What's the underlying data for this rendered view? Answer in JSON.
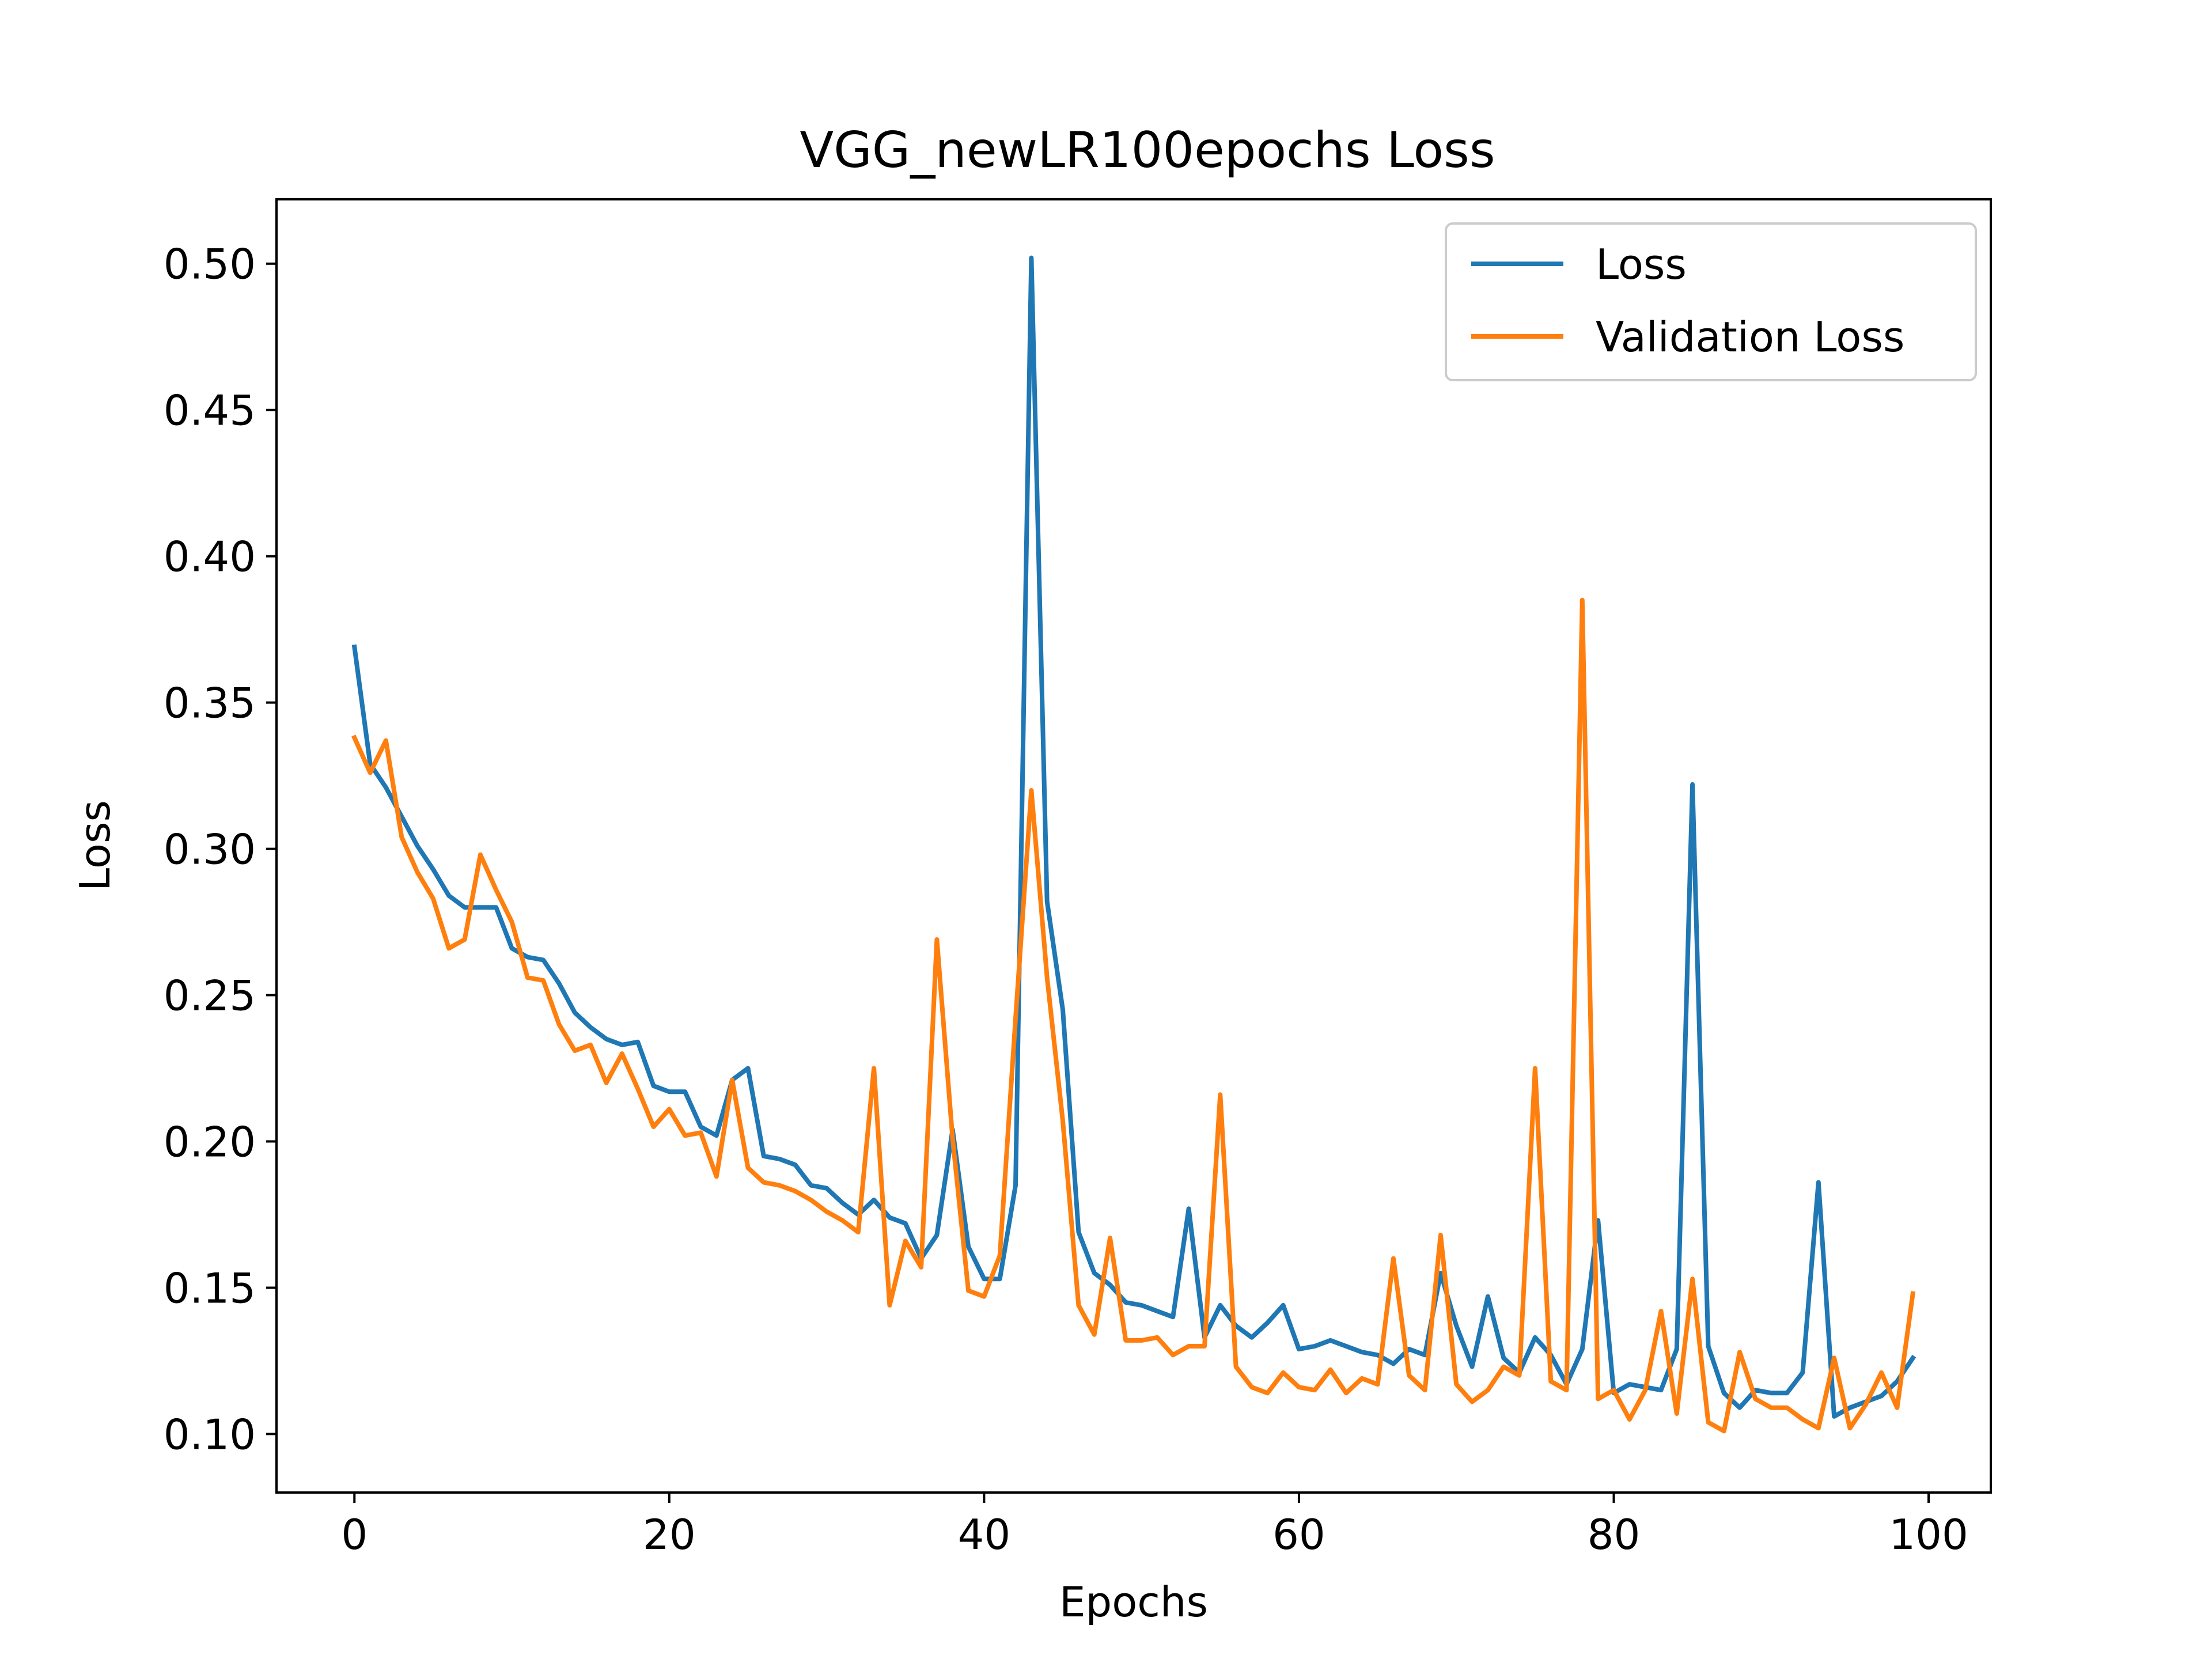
{
  "chart_data": {
    "type": "line",
    "title": "VGG_newLR100epochs Loss",
    "xlabel": "Epochs",
    "ylabel": "Loss",
    "xlim": [
      -4.95,
      103.95
    ],
    "ylim": [
      0.08,
      0.522
    ],
    "xticks": [
      0,
      20,
      40,
      60,
      80,
      100
    ],
    "xtick_labels": [
      "0",
      "20",
      "40",
      "60",
      "80",
      "100"
    ],
    "yticks": [
      0.1,
      0.15,
      0.2,
      0.25,
      0.3,
      0.35,
      0.4,
      0.45,
      0.5
    ],
    "ytick_labels": [
      "0.10",
      "0.15",
      "0.20",
      "0.25",
      "0.30",
      "0.35",
      "0.40",
      "0.45",
      "0.50"
    ],
    "grid": false,
    "legend": "upper right",
    "series": [
      {
        "name": "Loss",
        "color": "#1f77b4",
        "x": [
          0,
          1,
          2,
          3,
          4,
          5,
          6,
          7,
          8,
          9,
          10,
          11,
          12,
          13,
          14,
          15,
          16,
          17,
          18,
          19,
          20,
          21,
          22,
          23,
          24,
          25,
          26,
          27,
          28,
          29,
          30,
          31,
          32,
          33,
          34,
          35,
          36,
          37,
          38,
          39,
          40,
          41,
          42,
          43,
          44,
          45,
          46,
          47,
          48,
          49,
          50,
          51,
          52,
          53,
          54,
          55,
          56,
          57,
          58,
          59,
          60,
          61,
          62,
          63,
          64,
          65,
          66,
          67,
          68,
          69,
          70,
          71,
          72,
          73,
          74,
          75,
          76,
          77,
          78,
          79,
          80,
          81,
          82,
          83,
          84,
          85,
          86,
          87,
          88,
          89,
          90,
          91,
          92,
          93,
          94,
          95,
          96,
          97,
          98,
          99
        ],
        "values": [
          0.369,
          0.329,
          0.321,
          0.311,
          0.301,
          0.293,
          0.284,
          0.28,
          0.28,
          0.28,
          0.266,
          0.263,
          0.262,
          0.254,
          0.244,
          0.239,
          0.235,
          0.233,
          0.234,
          0.219,
          0.217,
          0.217,
          0.205,
          0.202,
          0.221,
          0.225,
          0.195,
          0.194,
          0.192,
          0.185,
          0.184,
          0.179,
          0.175,
          0.18,
          0.174,
          0.172,
          0.16,
          0.168,
          0.204,
          0.164,
          0.153,
          0.153,
          0.185,
          0.502,
          0.282,
          0.245,
          0.169,
          0.155,
          0.151,
          0.145,
          0.144,
          0.142,
          0.14,
          0.177,
          0.133,
          0.144,
          0.137,
          0.133,
          0.138,
          0.144,
          0.129,
          0.13,
          0.132,
          0.13,
          0.128,
          0.127,
          0.124,
          0.129,
          0.127,
          0.155,
          0.137,
          0.123,
          0.147,
          0.126,
          0.121,
          0.133,
          0.127,
          0.117,
          0.129,
          0.173,
          0.114,
          0.117,
          0.116,
          0.115,
          0.129,
          0.322,
          0.13,
          0.114,
          0.109,
          0.115,
          0.114,
          0.114,
          0.121,
          0.186,
          0.106,
          0.109,
          0.111,
          0.113,
          0.118,
          0.126
        ]
      },
      {
        "name": "Validation Loss",
        "color": "#ff7f0e",
        "x": [
          0,
          1,
          2,
          3,
          4,
          5,
          6,
          7,
          8,
          9,
          10,
          11,
          12,
          13,
          14,
          15,
          16,
          17,
          18,
          19,
          20,
          21,
          22,
          23,
          24,
          25,
          26,
          27,
          28,
          29,
          30,
          31,
          32,
          33,
          34,
          35,
          36,
          37,
          38,
          39,
          40,
          41,
          42,
          43,
          44,
          45,
          46,
          47,
          48,
          49,
          50,
          51,
          52,
          53,
          54,
          55,
          56,
          57,
          58,
          59,
          60,
          61,
          62,
          63,
          64,
          65,
          66,
          67,
          68,
          69,
          70,
          71,
          72,
          73,
          74,
          75,
          76,
          77,
          78,
          79,
          80,
          81,
          82,
          83,
          84,
          85,
          86,
          87,
          88,
          89,
          90,
          91,
          92,
          93,
          94,
          95,
          96,
          97,
          98,
          99
        ],
        "values": [
          0.338,
          0.326,
          0.337,
          0.304,
          0.292,
          0.283,
          0.266,
          0.269,
          0.298,
          0.286,
          0.275,
          0.256,
          0.255,
          0.24,
          0.231,
          0.233,
          0.22,
          0.23,
          0.218,
          0.205,
          0.211,
          0.202,
          0.203,
          0.188,
          0.221,
          0.191,
          0.186,
          0.185,
          0.183,
          0.18,
          0.176,
          0.173,
          0.169,
          0.225,
          0.144,
          0.166,
          0.157,
          0.269,
          0.201,
          0.149,
          0.147,
          0.161,
          0.242,
          0.32,
          0.256,
          0.207,
          0.144,
          0.134,
          0.167,
          0.132,
          0.132,
          0.133,
          0.127,
          0.13,
          0.13,
          0.216,
          0.123,
          0.116,
          0.114,
          0.121,
          0.116,
          0.115,
          0.122,
          0.114,
          0.119,
          0.117,
          0.16,
          0.12,
          0.115,
          0.168,
          0.117,
          0.111,
          0.115,
          0.123,
          0.12,
          0.225,
          0.118,
          0.115,
          0.385,
          0.112,
          0.115,
          0.105,
          0.115,
          0.142,
          0.107,
          0.153,
          0.104,
          0.101,
          0.128,
          0.112,
          0.109,
          0.109,
          0.105,
          0.102,
          0.126,
          0.102,
          0.11,
          0.121,
          0.109,
          0.148
        ]
      }
    ]
  }
}
